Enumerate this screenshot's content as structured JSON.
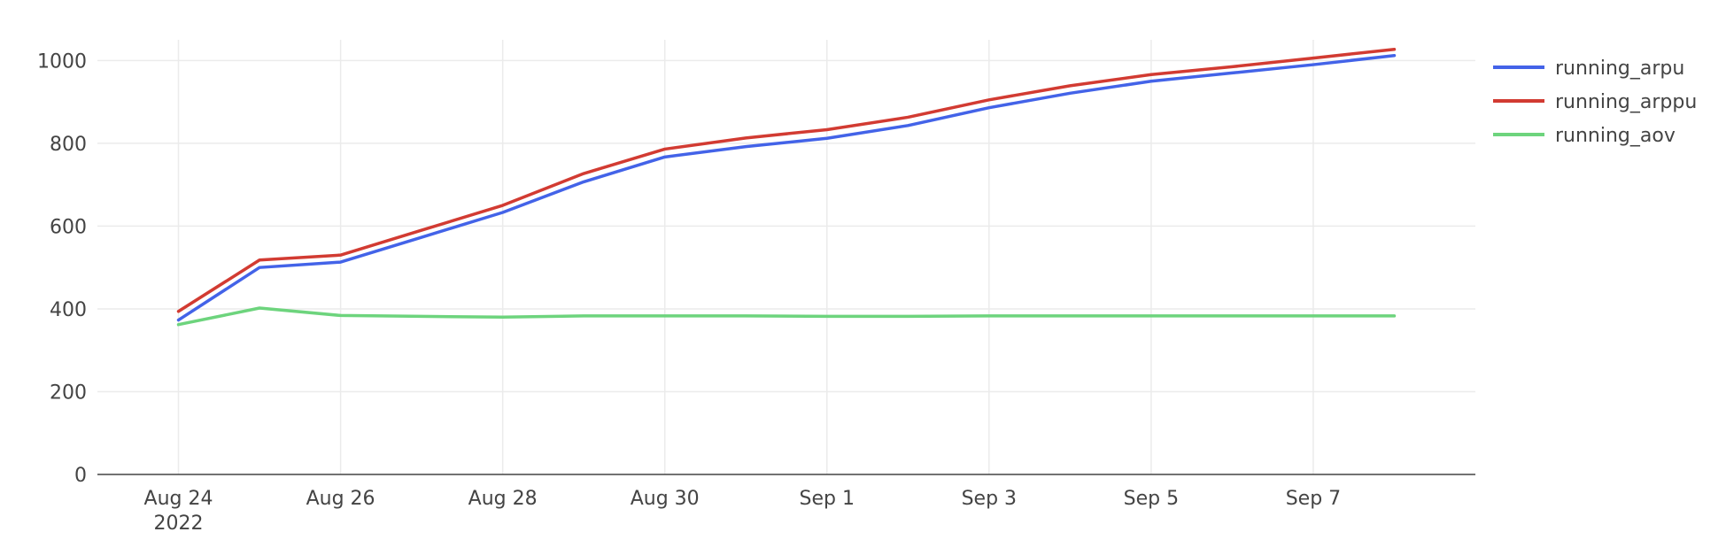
{
  "chart_data": {
    "type": "line",
    "title": "",
    "xlabel": "",
    "ylabel": "",
    "x": [
      "2022-08-24",
      "2022-08-25",
      "2022-08-26",
      "2022-08-27",
      "2022-08-28",
      "2022-08-29",
      "2022-08-30",
      "2022-08-31",
      "2022-09-01",
      "2022-09-02",
      "2022-09-03",
      "2022-09-04",
      "2022-09-05",
      "2022-09-06",
      "2022-09-07",
      "2022-09-08"
    ],
    "xlim": [
      "2022-08-23",
      "2022-09-09"
    ],
    "ylim": [
      0,
      1050
    ],
    "y_ticks": [
      0,
      200,
      400,
      600,
      800,
      1000
    ],
    "x_ticks": [
      {
        "date": "2022-08-24",
        "label": "Aug 24",
        "sublabel": "2022"
      },
      {
        "date": "2022-08-26",
        "label": "Aug 26"
      },
      {
        "date": "2022-08-28",
        "label": "Aug 28"
      },
      {
        "date": "2022-08-30",
        "label": "Aug 30"
      },
      {
        "date": "2022-09-01",
        "label": "Sep 1"
      },
      {
        "date": "2022-09-03",
        "label": "Sep 3"
      },
      {
        "date": "2022-09-05",
        "label": "Sep 5"
      },
      {
        "date": "2022-09-07",
        "label": "Sep 7"
      }
    ],
    "grid": true,
    "legend_position": "top-right",
    "series": [
      {
        "name": "running_arpu",
        "color": "#4363e8",
        "values": [
          373,
          500,
          513,
          573,
          633,
          707,
          767,
          792,
          812,
          843,
          886,
          921,
          950,
          970,
          990,
          1012
        ]
      },
      {
        "name": "running_arppu",
        "color": "#d23b32",
        "values": [
          394,
          518,
          530,
          590,
          650,
          727,
          786,
          813,
          833,
          863,
          905,
          939,
          966,
          985,
          1006,
          1027
        ]
      },
      {
        "name": "running_aov",
        "color": "#6dd47d",
        "values": [
          362,
          402,
          384,
          382,
          380,
          383,
          383,
          383,
          382,
          382,
          383,
          383,
          383,
          383,
          383,
          383
        ]
      }
    ]
  }
}
